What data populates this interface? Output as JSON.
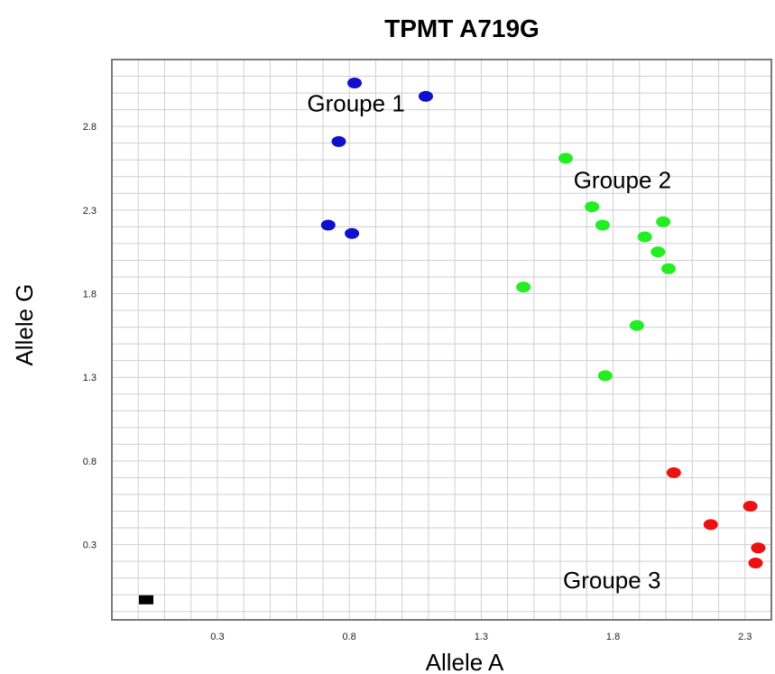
{
  "chart_data": {
    "type": "scatter",
    "title": "TPMT A719G",
    "xlabel": "Allele A",
    "ylabel": "Allele G",
    "xlim": [
      -0.1,
      2.4
    ],
    "ylim": [
      -0.15,
      3.2
    ],
    "grid": true,
    "x_ticks": [
      0.3,
      0.8,
      1.3,
      1.8,
      2.3
    ],
    "y_ticks": [
      0.3,
      0.8,
      1.3,
      1.8,
      2.3,
      2.8
    ],
    "x_tick_labels": [
      "0.3",
      "0.8",
      "1.3",
      "1.8",
      "2.3"
    ],
    "y_tick_labels": [
      "0.3",
      "0.8",
      "1.3",
      "1.8",
      "2.3",
      "2.8"
    ],
    "series": [
      {
        "color": "#1010cc",
        "points": [
          {
            "x": 0.82,
            "y": 3.06
          },
          {
            "x": 1.09,
            "y": 2.98
          },
          {
            "x": 0.76,
            "y": 2.71
          },
          {
            "x": 0.72,
            "y": 2.21
          },
          {
            "x": 0.81,
            "y": 2.16
          }
        ]
      },
      {
        "color": "#22ee22",
        "points": [
          {
            "x": 1.62,
            "y": 2.61
          },
          {
            "x": 1.72,
            "y": 2.32
          },
          {
            "x": 1.76,
            "y": 2.21
          },
          {
            "x": 1.99,
            "y": 2.23
          },
          {
            "x": 1.92,
            "y": 2.14
          },
          {
            "x": 1.97,
            "y": 2.05
          },
          {
            "x": 2.01,
            "y": 1.95
          },
          {
            "x": 1.46,
            "y": 1.84
          },
          {
            "x": 1.89,
            "y": 1.61
          },
          {
            "x": 1.77,
            "y": 1.31
          }
        ]
      },
      {
        "color": "#ee1111",
        "points": [
          {
            "x": 2.03,
            "y": 0.73
          },
          {
            "x": 2.32,
            "y": 0.53
          },
          {
            "x": 2.17,
            "y": 0.42
          },
          {
            "x": 2.35,
            "y": 0.28
          },
          {
            "x": 2.34,
            "y": 0.19
          }
        ]
      },
      {
        "color": "#000000",
        "marker": "square",
        "points": [
          {
            "x": 0.03,
            "y": -0.03
          }
        ]
      }
    ],
    "annotations": [
      {
        "text": "Groupe 1",
        "x": 0.64,
        "y": 2.89
      },
      {
        "text": "Groupe 2",
        "x": 1.65,
        "y": 2.43
      },
      {
        "text": "Groupe 3",
        "x": 1.61,
        "y": 0.04
      }
    ]
  }
}
